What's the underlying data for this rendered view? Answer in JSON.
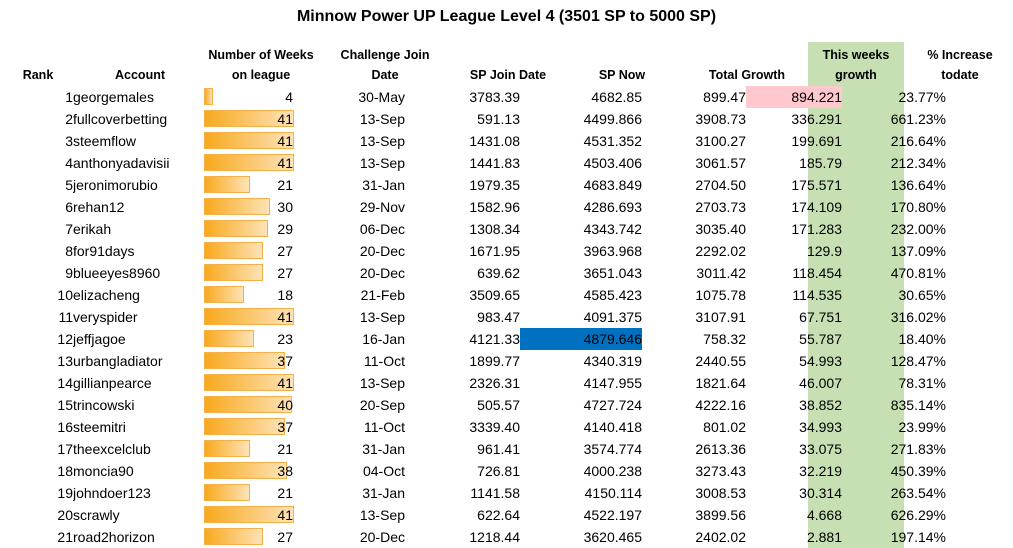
{
  "title": "Minnow Power UP League Level 4 (3501 SP to 5000 SP)",
  "colors": {
    "this_weeks_col": "#c6e0b4",
    "highlight_blue": "#0070c0",
    "highlight_pink": "#ffc7ce",
    "bar": "#f8a91d"
  },
  "headers": {
    "rank": "Rank",
    "account": "Account",
    "weeks_l1": "Number of Weeks",
    "weeks_l2": "on league",
    "join_l1": "Challenge Join",
    "join_l2": "Date",
    "sp_join": "SP Join Date",
    "sp_now": "SP Now",
    "total_growth": "Total Growth",
    "tw_l1": "This weeks",
    "tw_l2": "growth",
    "pct_l1": "% Increase",
    "pct_l2": "todate"
  },
  "max_weeks": 41,
  "rows": [
    {
      "rank": "1",
      "account": "georgemales",
      "weeks": 4,
      "join": "30-May",
      "sp_join": "3783.39",
      "sp_now": "4682.85",
      "total": "899.47",
      "this_week": "894.221",
      "pct": "23.77%"
    },
    {
      "rank": "2",
      "account": "fullcoverbetting",
      "weeks": 41,
      "join": "13-Sep",
      "sp_join": "591.13",
      "sp_now": "4499.866",
      "total": "3908.73",
      "this_week": "336.291",
      "pct": "661.23%"
    },
    {
      "rank": "3",
      "account": "steemflow",
      "weeks": 41,
      "join": "13-Sep",
      "sp_join": "1431.08",
      "sp_now": "4531.352",
      "total": "3100.27",
      "this_week": "199.691",
      "pct": "216.64%"
    },
    {
      "rank": "4",
      "account": "anthonyadavisii",
      "weeks": 41,
      "join": "13-Sep",
      "sp_join": "1441.83",
      "sp_now": "4503.406",
      "total": "3061.57",
      "this_week": "185.79",
      "pct": "212.34%"
    },
    {
      "rank": "5",
      "account": "jeronimorubio",
      "weeks": 21,
      "join": "31-Jan",
      "sp_join": "1979.35",
      "sp_now": "4683.849",
      "total": "2704.50",
      "this_week": "175.571",
      "pct": "136.64%"
    },
    {
      "rank": "6",
      "account": "rehan12",
      "weeks": 30,
      "join": "29-Nov",
      "sp_join": "1582.96",
      "sp_now": "4286.693",
      "total": "2703.73",
      "this_week": "174.109",
      "pct": "170.80%"
    },
    {
      "rank": "7",
      "account": "erikah",
      "weeks": 29,
      "join": "06-Dec",
      "sp_join": "1308.34",
      "sp_now": "4343.742",
      "total": "3035.40",
      "this_week": "171.283",
      "pct": "232.00%"
    },
    {
      "rank": "8",
      "account": "for91days",
      "weeks": 27,
      "join": "20-Dec",
      "sp_join": "1671.95",
      "sp_now": "3963.968",
      "total": "2292.02",
      "this_week": "129.9",
      "pct": "137.09%"
    },
    {
      "rank": "9",
      "account": "blueeyes8960",
      "weeks": 27,
      "join": "20-Dec",
      "sp_join": "639.62",
      "sp_now": "3651.043",
      "total": "3011.42",
      "this_week": "118.454",
      "pct": "470.81%"
    },
    {
      "rank": "10",
      "account": "elizacheng",
      "weeks": 18,
      "join": "21-Feb",
      "sp_join": "3509.65",
      "sp_now": "4585.423",
      "total": "1075.78",
      "this_week": "114.535",
      "pct": "30.65%"
    },
    {
      "rank": "11",
      "account": "veryspider",
      "weeks": 41,
      "join": "13-Sep",
      "sp_join": "983.47",
      "sp_now": "4091.375",
      "total": "3107.91",
      "this_week": "67.751",
      "pct": "316.02%"
    },
    {
      "rank": "12",
      "account": "jeffjagoe",
      "weeks": 23,
      "join": "16-Jan",
      "sp_join": "4121.33",
      "sp_now": "4879.646",
      "total": "758.32",
      "this_week": "55.787",
      "pct": "18.40%"
    },
    {
      "rank": "13",
      "account": "urbangladiator",
      "weeks": 37,
      "join": "11-Oct",
      "sp_join": "1899.77",
      "sp_now": "4340.319",
      "total": "2440.55",
      "this_week": "54.993",
      "pct": "128.47%"
    },
    {
      "rank": "14",
      "account": "gillianpearce",
      "weeks": 41,
      "join": "13-Sep",
      "sp_join": "2326.31",
      "sp_now": "4147.955",
      "total": "1821.64",
      "this_week": "46.007",
      "pct": "78.31%"
    },
    {
      "rank": "15",
      "account": "trincowski",
      "weeks": 40,
      "join": "20-Sep",
      "sp_join": "505.57",
      "sp_now": "4727.724",
      "total": "4222.16",
      "this_week": "38.852",
      "pct": "835.14%"
    },
    {
      "rank": "16",
      "account": "steemitri",
      "weeks": 37,
      "join": "11-Oct",
      "sp_join": "3339.40",
      "sp_now": "4140.418",
      "total": "801.02",
      "this_week": "34.993",
      "pct": "23.99%"
    },
    {
      "rank": "17",
      "account": "theexcelclub",
      "weeks": 21,
      "join": "31-Jan",
      "sp_join": "961.41",
      "sp_now": "3574.774",
      "total": "2613.36",
      "this_week": "33.075",
      "pct": "271.83%"
    },
    {
      "rank": "18",
      "account": "moncia90",
      "weeks": 38,
      "join": "04-Oct",
      "sp_join": "726.81",
      "sp_now": "4000.238",
      "total": "3273.43",
      "this_week": "32.219",
      "pct": "450.39%"
    },
    {
      "rank": "19",
      "account": "johndoer123",
      "weeks": 21,
      "join": "31-Jan",
      "sp_join": "1141.58",
      "sp_now": "4150.114",
      "total": "3008.53",
      "this_week": "30.314",
      "pct": "263.54%"
    },
    {
      "rank": "20",
      "account": "scrawly",
      "weeks": 41,
      "join": "13-Sep",
      "sp_join": "622.64",
      "sp_now": "4522.197",
      "total": "3899.56",
      "this_week": "4.668",
      "pct": "626.29%"
    },
    {
      "rank": "21",
      "account": "road2horizon",
      "weeks": 27,
      "join": "20-Dec",
      "sp_join": "1218.44",
      "sp_now": "3620.465",
      "total": "2402.02",
      "this_week": "2.881",
      "pct": "197.14%"
    }
  ],
  "highlights": {
    "sp_now_row": "12",
    "this_week_row": "1"
  }
}
